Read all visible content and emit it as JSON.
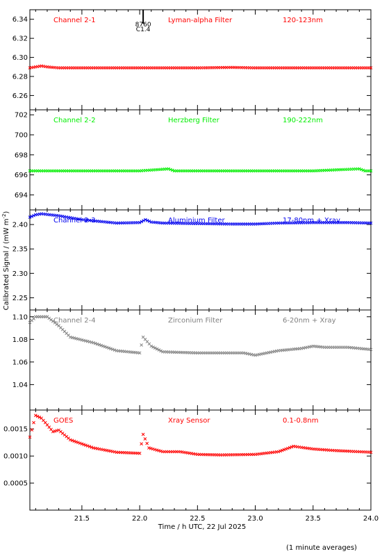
{
  "chart_data": {
    "type": "scatter",
    "xlabel": "Time / h UTC, 22 Jul 2025",
    "ylabel": "Calibrated Signal / (mW m",
    "ylabel_sup": "-2",
    "ylabel_close": ")",
    "footnote": "(1 minute averages)",
    "xlim": [
      21.05,
      24.0
    ],
    "xticks": [
      "21.5",
      "22.0",
      "22.5",
      "23.0",
      "23.5",
      "24.0"
    ],
    "xtick_values": [
      21.5,
      22.0,
      22.5,
      23.0,
      23.5,
      24.0
    ],
    "panels": [
      {
        "channel": "Channel 2-1",
        "filter": "Lyman-alpha Filter",
        "band": "120-123nm",
        "color": "#ff0000",
        "ylim": [
          6.245,
          6.35
        ],
        "yticks": [
          "6.26",
          "6.28",
          "6.30",
          "6.32",
          "6.34"
        ],
        "ytick_values": [
          6.26,
          6.28,
          6.3,
          6.32,
          6.34
        ],
        "flare_marker": {
          "time": 22.03,
          "class": "C1.4",
          "id": "8760"
        },
        "series": [
          {
            "x": 21.05,
            "y": 6.289
          },
          {
            "x": 21.1,
            "y": 6.29
          },
          {
            "x": 21.15,
            "y": 6.291
          },
          {
            "x": 21.2,
            "y": 6.29
          },
          {
            "x": 21.3,
            "y": 6.289
          },
          {
            "x": 21.5,
            "y": 6.289
          },
          {
            "x": 22.0,
            "y": 6.289
          },
          {
            "x": 22.5,
            "y": 6.289
          },
          {
            "x": 22.8,
            "y": 6.2895
          },
          {
            "x": 23.0,
            "y": 6.289
          },
          {
            "x": 23.5,
            "y": 6.289
          },
          {
            "x": 24.0,
            "y": 6.289
          }
        ]
      },
      {
        "channel": "Channel 2-2",
        "filter": "Herzberg Filter",
        "band": "190-222nm",
        "color": "#00ee00",
        "ylim": [
          692.5,
          702.5
        ],
        "yticks": [
          "694",
          "696",
          "698",
          "700",
          "702"
        ],
        "ytick_values": [
          694,
          696,
          698,
          700,
          702
        ],
        "series": [
          {
            "x": 21.05,
            "y": 696.4
          },
          {
            "x": 21.5,
            "y": 696.4
          },
          {
            "x": 22.0,
            "y": 696.4
          },
          {
            "x": 22.25,
            "y": 696.6
          },
          {
            "x": 22.3,
            "y": 696.4
          },
          {
            "x": 22.5,
            "y": 696.4
          },
          {
            "x": 23.0,
            "y": 696.4
          },
          {
            "x": 23.5,
            "y": 696.4
          },
          {
            "x": 23.9,
            "y": 696.6
          },
          {
            "x": 23.95,
            "y": 696.4
          },
          {
            "x": 24.0,
            "y": 696.4
          }
        ]
      },
      {
        "channel": "Channel 2-3",
        "filter": "Aluminium Filter",
        "band": "17-80nm + Xray",
        "color": "#0000ee",
        "ylim": [
          2.225,
          2.43
        ],
        "yticks": [
          "2.25",
          "2.30",
          "2.35",
          "2.40"
        ],
        "ytick_values": [
          2.25,
          2.3,
          2.35,
          2.4
        ],
        "series": [
          {
            "x": 21.05,
            "y": 2.415
          },
          {
            "x": 21.1,
            "y": 2.42
          },
          {
            "x": 21.15,
            "y": 2.422
          },
          {
            "x": 21.3,
            "y": 2.418
          },
          {
            "x": 21.5,
            "y": 2.41
          },
          {
            "x": 21.8,
            "y": 2.403
          },
          {
            "x": 22.0,
            "y": 2.404
          },
          {
            "x": 22.05,
            "y": 2.41
          },
          {
            "x": 22.1,
            "y": 2.405
          },
          {
            "x": 22.2,
            "y": 2.403
          },
          {
            "x": 22.5,
            "y": 2.402
          },
          {
            "x": 22.8,
            "y": 2.401
          },
          {
            "x": 23.0,
            "y": 2.401
          },
          {
            "x": 23.2,
            "y": 2.403
          },
          {
            "x": 23.5,
            "y": 2.404
          },
          {
            "x": 23.8,
            "y": 2.404
          },
          {
            "x": 24.0,
            "y": 2.403
          }
        ]
      },
      {
        "channel": "Channel 2-4",
        "filter": "Zirconium Filter",
        "band": "6-20nm + Xray",
        "color": "#808080",
        "ylim": [
          1.0175,
          1.106
        ],
        "yticks": [
          "1.04",
          "1.06",
          "1.08",
          "1.10"
        ],
        "ytick_values": [
          1.04,
          1.06,
          1.08,
          1.1
        ],
        "series": [
          {
            "x": 21.05,
            "y": 1.095
          },
          {
            "x": 21.1,
            "y": 1.1
          },
          {
            "x": 21.2,
            "y": 1.1
          },
          {
            "x": 21.3,
            "y": 1.092
          },
          {
            "x": 21.4,
            "y": 1.082
          },
          {
            "x": 21.6,
            "y": 1.077
          },
          {
            "x": 21.8,
            "y": 1.07
          },
          {
            "x": 22.0,
            "y": 1.068
          },
          {
            "x": 22.03,
            "y": 1.082
          },
          {
            "x": 22.1,
            "y": 1.074
          },
          {
            "x": 22.2,
            "y": 1.069
          },
          {
            "x": 22.5,
            "y": 1.068
          },
          {
            "x": 22.7,
            "y": 1.068
          },
          {
            "x": 22.9,
            "y": 1.068
          },
          {
            "x": 23.0,
            "y": 1.066
          },
          {
            "x": 23.2,
            "y": 1.07
          },
          {
            "x": 23.4,
            "y": 1.072
          },
          {
            "x": 23.5,
            "y": 1.074
          },
          {
            "x": 23.6,
            "y": 1.073
          },
          {
            "x": 23.8,
            "y": 1.073
          },
          {
            "x": 24.0,
            "y": 1.071
          }
        ]
      },
      {
        "channel": "GOES",
        "filter": "Xray Sensor",
        "band": "0.1-0.8nm",
        "color": "#ff0000",
        "ylim": [
          0.0,
          0.00185
        ],
        "yticks": [
          "0.0005",
          "0.0010",
          "0.0015"
        ],
        "ytick_values": [
          0.0005,
          0.001,
          0.0015
        ],
        "series": [
          {
            "x": 21.05,
            "y": 0.00135
          },
          {
            "x": 21.1,
            "y": 0.00175
          },
          {
            "x": 21.15,
            "y": 0.0017
          },
          {
            "x": 21.25,
            "y": 0.00145
          },
          {
            "x": 21.3,
            "y": 0.00148
          },
          {
            "x": 21.4,
            "y": 0.0013
          },
          {
            "x": 21.6,
            "y": 0.00115
          },
          {
            "x": 21.8,
            "y": 0.00107
          },
          {
            "x": 22.0,
            "y": 0.00105
          },
          {
            "x": 22.03,
            "y": 0.0014
          },
          {
            "x": 22.08,
            "y": 0.00115
          },
          {
            "x": 22.2,
            "y": 0.00108
          },
          {
            "x": 22.35,
            "y": 0.00108
          },
          {
            "x": 22.5,
            "y": 0.00103
          },
          {
            "x": 22.7,
            "y": 0.00102
          },
          {
            "x": 23.0,
            "y": 0.00103
          },
          {
            "x": 23.2,
            "y": 0.00108
          },
          {
            "x": 23.33,
            "y": 0.00118
          },
          {
            "x": 23.5,
            "y": 0.00113
          },
          {
            "x": 23.7,
            "y": 0.0011
          },
          {
            "x": 24.0,
            "y": 0.00107
          }
        ]
      }
    ]
  }
}
